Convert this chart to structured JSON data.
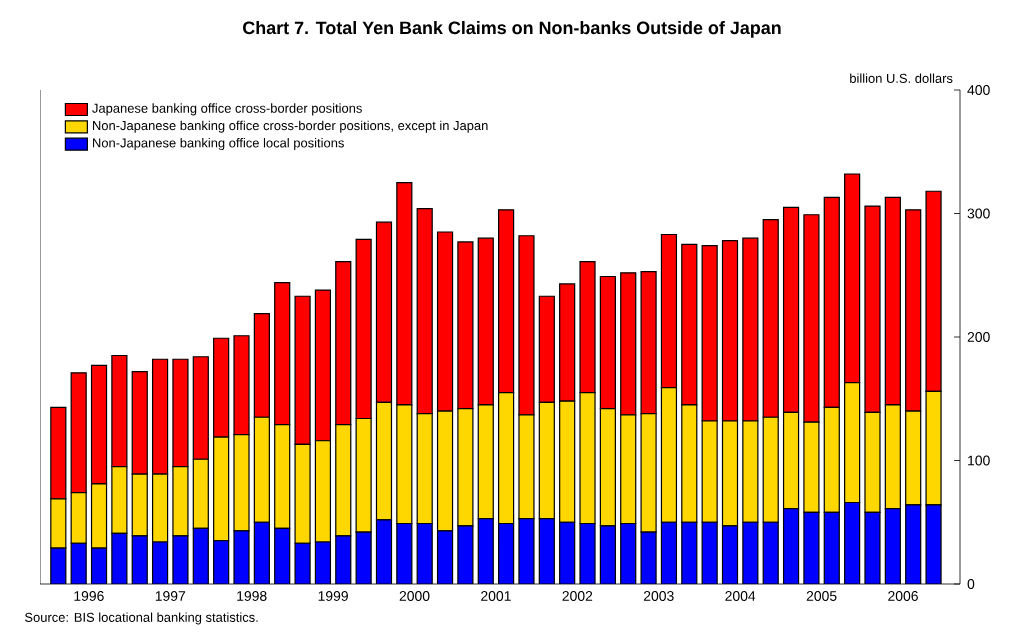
{
  "chart_data": {
    "type": "bar",
    "title": "Chart 7. Total Yen Bank Claims on Non-banks Outside of Japan",
    "ylabel": "billion U.S. dollars",
    "annotations": [
      "Source: BIS locational banking statistics."
    ],
    "x": [
      1996.125,
      1996.375,
      1996.625,
      1996.875,
      1997.125,
      1997.375,
      1997.625,
      1997.875,
      1998.125,
      1998.375,
      1998.625,
      1998.875,
      1999.125,
      1999.375,
      1999.625,
      1999.875,
      2000.125,
      2000.375,
      2000.625,
      2000.875,
      2001.125,
      2001.375,
      2001.625,
      2001.875,
      2002.125,
      2002.375,
      2002.625,
      2002.875,
      2003.125,
      2003.375,
      2003.625,
      2003.875,
      2004.125,
      2004.375,
      2004.625,
      2004.875,
      2005.125,
      2005.375,
      2005.625,
      2005.875,
      2006.125,
      2006.375,
      2006.625,
      2006.875
    ],
    "xlim": [
      1995.9,
      2007.2
    ],
    "xticks": [
      {
        "value": 1996.5,
        "label": "1996"
      },
      {
        "value": 1997.5,
        "label": "1997"
      },
      {
        "value": 1998.5,
        "label": "1998"
      },
      {
        "value": 1999.5,
        "label": "1999"
      },
      {
        "value": 2000.5,
        "label": "2000"
      },
      {
        "value": 2001.5,
        "label": "2001"
      },
      {
        "value": 2002.5,
        "label": "2002"
      },
      {
        "value": 2003.5,
        "label": "2003"
      },
      {
        "value": 2004.5,
        "label": "2004"
      },
      {
        "value": 2005.5,
        "label": "2005"
      },
      {
        "value": 2006.5,
        "label": "2006"
      }
    ],
    "ylim": [
      0,
      400
    ],
    "yticks": [
      0,
      100,
      200,
      300,
      400
    ],
    "stacked": true,
    "legend": "top left",
    "series": [
      {
        "name": "Non-Japanese banking office local positions",
        "color": "#0000ff",
        "values": [
          29,
          33,
          29,
          41,
          39,
          34,
          39,
          45,
          35,
          43,
          50,
          45,
          33,
          34,
          39,
          42,
          52,
          49,
          49,
          43,
          47,
          53,
          49,
          53,
          53,
          50,
          49,
          47,
          49,
          42,
          50,
          50,
          50,
          47,
          50,
          50,
          61,
          58,
          58,
          66,
          58,
          61,
          64,
          64
        ]
      },
      {
        "name": "Non-Japanese banking office cross-border positions, except in Japan",
        "color": "#ffd700",
        "values": [
          40,
          41,
          52,
          54,
          50,
          55,
          56,
          56,
          84,
          78,
          85,
          84,
          80,
          82,
          90,
          92,
          95,
          96,
          89,
          97,
          95,
          92,
          106,
          84,
          94,
          98,
          106,
          95,
          88,
          96,
          109,
          95,
          82,
          85,
          82,
          85,
          78,
          73,
          85,
          97,
          81,
          84,
          76,
          92
        ]
      },
      {
        "name": "Japanese banking office cross-border positions",
        "color": "#ff0000",
        "values": [
          74,
          97,
          96,
          90,
          83,
          93,
          87,
          83,
          80,
          80,
          84,
          115,
          120,
          122,
          132,
          145,
          146,
          180,
          166,
          145,
          135,
          135,
          148,
          145,
          86,
          95,
          106,
          107,
          115,
          115,
          124,
          130,
          142,
          146,
          148,
          160,
          166,
          168,
          170,
          169,
          167,
          168,
          163,
          162
        ]
      }
    ]
  }
}
